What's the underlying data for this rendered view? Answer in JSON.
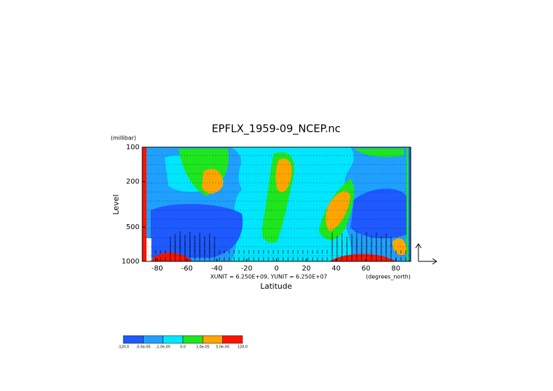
{
  "chart_data": {
    "type": "contour",
    "title": "EPFLX_1959-09_NCEP.nc",
    "y_unit_label": "(millibar)",
    "ylabel": "Level",
    "xlabel": "Latitude",
    "x_unit_label": "(degrees_north)",
    "vector_scale_label": "XUNIT = 6.250E+09, YUNIT = 6.250E+07",
    "xlim": [
      -90,
      90
    ],
    "xticks": [
      -80,
      -60,
      -40,
      -20,
      0,
      20,
      40,
      60,
      80
    ],
    "ylim": [
      1000,
      100
    ],
    "yticks": [
      100,
      200,
      500,
      1000
    ],
    "log_y": true,
    "colorbar": {
      "colors": [
        "#1e5aff",
        "#1fa0ff",
        "#00e6ff",
        "#1ee61e",
        "#ffa500",
        "#ff1400"
      ],
      "levels": [
        {
          "value": -120,
          "label": "-120.0"
        },
        {
          "value": -5e-05,
          "label": "-5.0e-05"
        },
        {
          "value": -1e-05,
          "label": "-1.0e-05"
        },
        {
          "value": 0,
          "label": "0.0"
        },
        {
          "value": 1e-05,
          "label": "1.0e-05"
        },
        {
          "value": 5e-05,
          "label": "5.0e-05"
        },
        {
          "value": 120,
          "label": "120.0"
        }
      ]
    }
  }
}
